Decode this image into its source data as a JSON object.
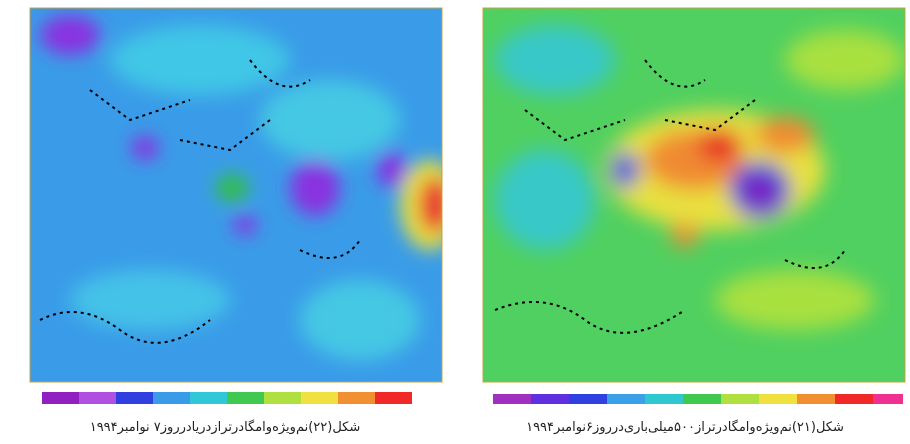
{
  "figures": [
    {
      "caption": "شکل(۲۲)نم‌ویژه‌وامگادرترازدریادرروز۷ نوامبر۱۹۹۴"
    },
    {
      "caption": "شکل(۲۱)نم‌ویژه‌وامگادرتراز۵۰۰میلی‌باری‌درروز۶نوامبر۱۹۹۴"
    }
  ]
}
